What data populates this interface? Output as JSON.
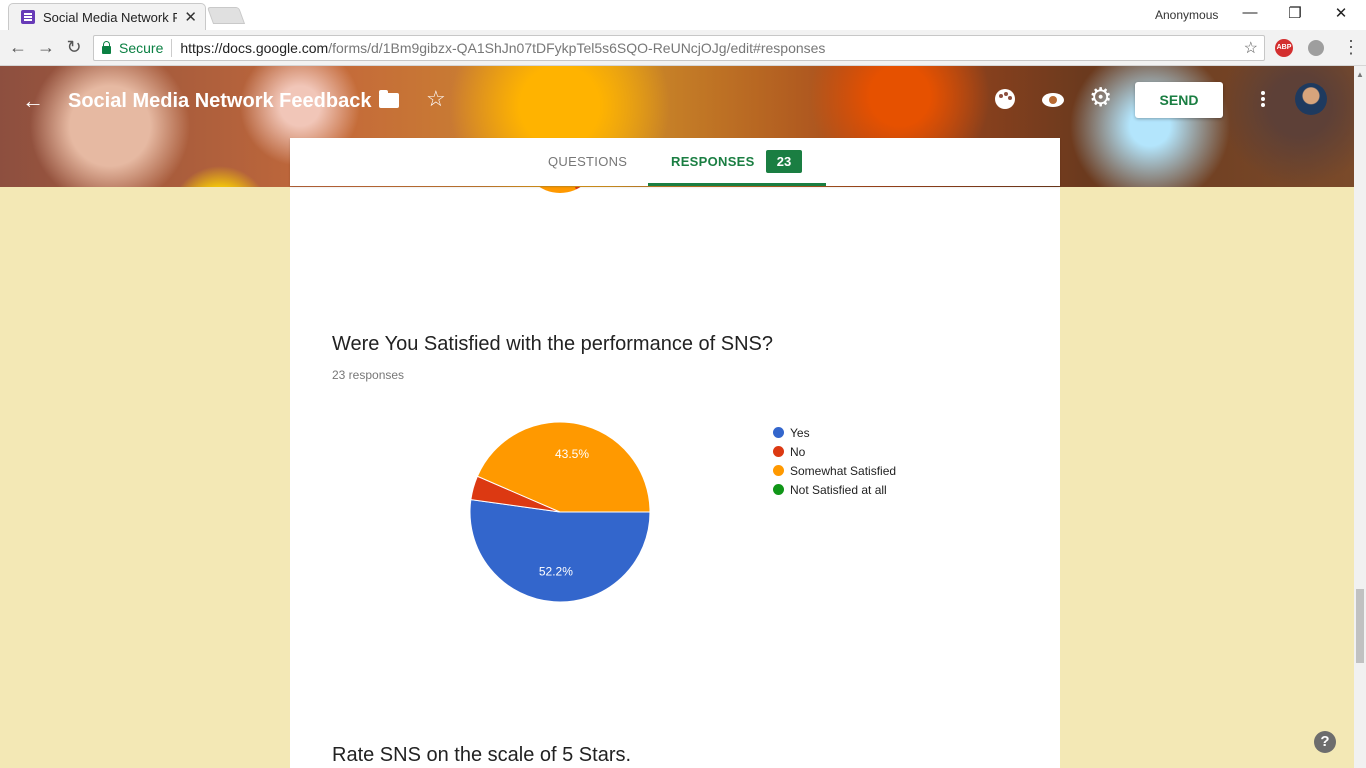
{
  "browser": {
    "tab_title": "Social Media Network Fe",
    "tab_close": "✕",
    "profile": "Anonymous",
    "window_buttons": {
      "minimize": "—",
      "restore": "❐",
      "close": "✕"
    },
    "nav": {
      "back": "←",
      "forward": "→",
      "reload": "↻"
    },
    "secure_label": "Secure",
    "url_host": "https://docs.google.com",
    "url_path": "/forms/d/1Bm9gibzx-QA1ShJn07tDFykpTel5s6SQO-ReUNcjOJg/edit#responses",
    "bookmark_star": "☆",
    "abp_label": "ABP",
    "menu": "⋮"
  },
  "header": {
    "back": "←",
    "title": "Social Media Network Feedback",
    "star": "☆",
    "gear": "⚙",
    "send_label": "SEND"
  },
  "tabs": {
    "questions_label": "QUESTIONS",
    "responses_label": "RESPONSES",
    "responses_count": "23"
  },
  "question": {
    "title": "Were You Satisfied with the performance of SNS?",
    "responses": "23 responses"
  },
  "chart_data": {
    "type": "pie",
    "categories": [
      "Yes",
      "No",
      "Somewhat Satisfied",
      "Not Satisfied at all"
    ],
    "values": [
      52.2,
      4.3,
      43.5,
      0
    ],
    "data_labels": [
      "52.2%",
      "",
      "43.5%",
      ""
    ],
    "colors": [
      "#3366cc",
      "#dc3912",
      "#ff9900",
      "#109618"
    ],
    "legend_position": "right"
  },
  "next_question": {
    "title": "Rate SNS on the scale of 5 Stars."
  },
  "help": "?",
  "scroll_up": "▲"
}
